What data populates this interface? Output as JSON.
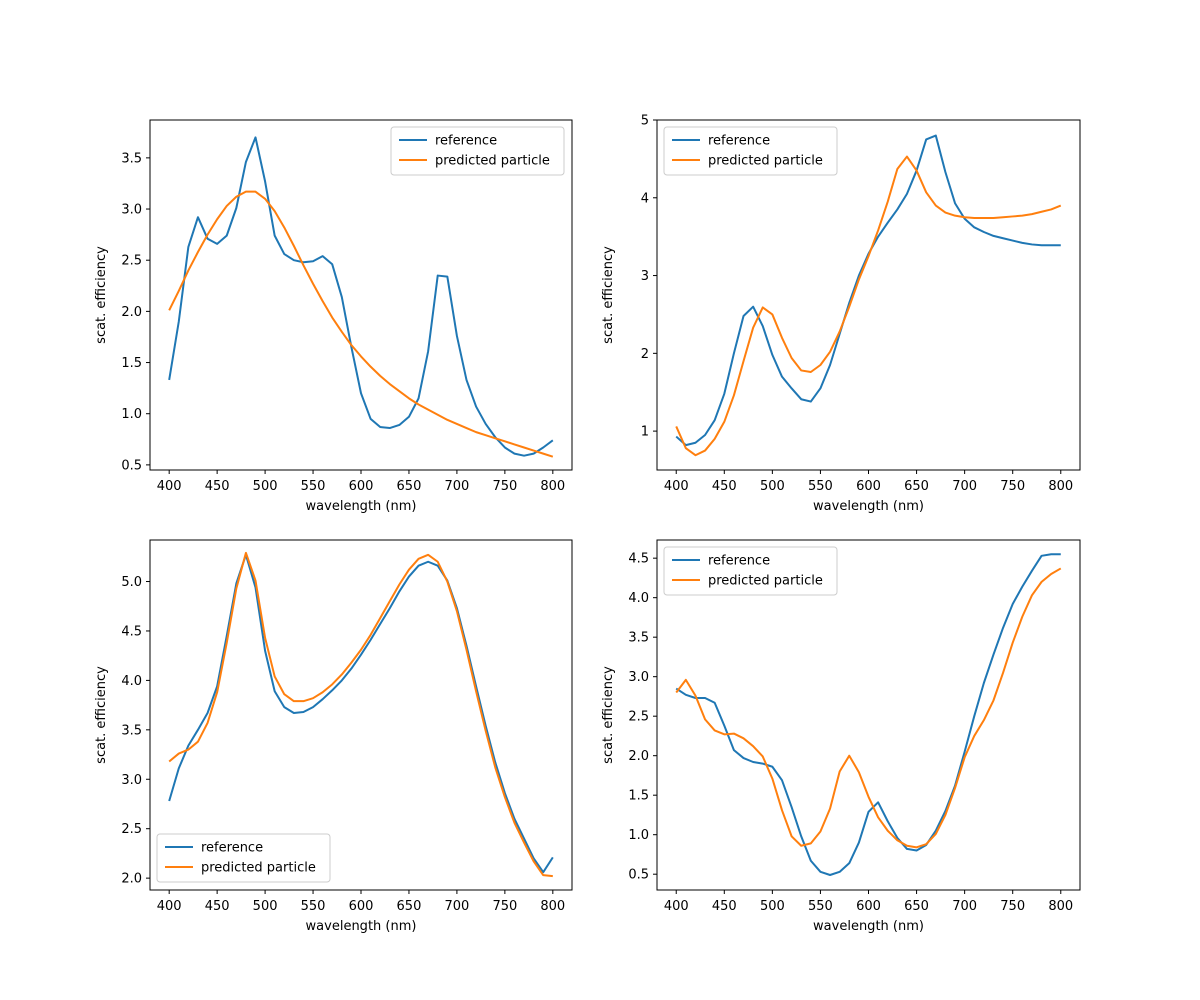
{
  "figure": {
    "title": ""
  },
  "chart_data": [
    {
      "type": "line",
      "title": "",
      "xlabel": "wavelength (nm)",
      "ylabel": "scat. efficiency",
      "xlim": [
        380,
        820
      ],
      "ylim": [
        0.45,
        3.87
      ],
      "xticks": [
        400,
        450,
        500,
        550,
        600,
        650,
        700,
        750,
        800
      ],
      "yticks": [
        0.5,
        1.0,
        1.5,
        2.0,
        2.5,
        3.0,
        3.5
      ],
      "ytick_format": 1,
      "legend_position": "top-right",
      "series": [
        {
          "name": "reference",
          "color": "#1f77b4",
          "x": [
            400,
            410,
            420,
            430,
            440,
            450,
            460,
            470,
            480,
            490,
            500,
            510,
            520,
            530,
            540,
            550,
            560,
            570,
            580,
            590,
            600,
            610,
            620,
            630,
            640,
            650,
            660,
            670,
            680,
            690,
            700,
            710,
            720,
            730,
            740,
            750,
            760,
            770,
            780,
            790,
            800
          ],
          "y": [
            1.33,
            1.9,
            2.63,
            2.92,
            2.71,
            2.66,
            2.74,
            3.01,
            3.46,
            3.7,
            3.27,
            2.74,
            2.56,
            2.5,
            2.48,
            2.49,
            2.54,
            2.46,
            2.14,
            1.65,
            1.2,
            0.95,
            0.87,
            0.86,
            0.89,
            0.97,
            1.15,
            1.61,
            2.35,
            2.34,
            1.76,
            1.33,
            1.07,
            0.9,
            0.77,
            0.67,
            0.61,
            0.59,
            0.61,
            0.67,
            0.74
          ]
        },
        {
          "name": "predicted particle",
          "color": "#ff7f0e",
          "x": [
            400,
            410,
            420,
            430,
            440,
            450,
            460,
            470,
            480,
            490,
            500,
            510,
            520,
            530,
            540,
            550,
            560,
            570,
            580,
            590,
            600,
            610,
            620,
            630,
            640,
            650,
            660,
            670,
            680,
            690,
            700,
            710,
            720,
            730,
            740,
            750,
            760,
            770,
            780,
            790,
            800
          ],
          "y": [
            2.01,
            2.2,
            2.4,
            2.58,
            2.75,
            2.9,
            3.03,
            3.12,
            3.17,
            3.17,
            3.1,
            2.98,
            2.82,
            2.64,
            2.45,
            2.27,
            2.1,
            1.94,
            1.8,
            1.67,
            1.56,
            1.46,
            1.37,
            1.29,
            1.22,
            1.15,
            1.09,
            1.04,
            0.99,
            0.94,
            0.9,
            0.86,
            0.82,
            0.79,
            0.76,
            0.73,
            0.7,
            0.67,
            0.64,
            0.61,
            0.58
          ]
        }
      ]
    },
    {
      "type": "line",
      "title": "",
      "xlabel": "wavelength (nm)",
      "ylabel": "scat. efficiency",
      "xlim": [
        380,
        820
      ],
      "ylim": [
        0.5,
        5.0
      ],
      "xticks": [
        400,
        450,
        500,
        550,
        600,
        650,
        700,
        750,
        800
      ],
      "yticks": [
        1,
        2,
        3,
        4,
        5
      ],
      "ytick_format": 0,
      "legend_position": "top-left",
      "series": [
        {
          "name": "reference",
          "color": "#1f77b4",
          "x": [
            400,
            410,
            420,
            430,
            440,
            450,
            460,
            470,
            480,
            490,
            500,
            510,
            520,
            530,
            540,
            550,
            560,
            570,
            580,
            590,
            600,
            610,
            620,
            630,
            640,
            650,
            660,
            670,
            680,
            690,
            700,
            710,
            720,
            730,
            740,
            750,
            760,
            770,
            780,
            790,
            800
          ],
          "y": [
            0.93,
            0.82,
            0.85,
            0.95,
            1.14,
            1.48,
            2.0,
            2.48,
            2.6,
            2.35,
            1.98,
            1.7,
            1.55,
            1.41,
            1.38,
            1.55,
            1.85,
            2.25,
            2.65,
            3.0,
            3.28,
            3.5,
            3.68,
            3.85,
            4.05,
            4.35,
            4.75,
            4.8,
            4.33,
            3.93,
            3.73,
            3.62,
            3.56,
            3.51,
            3.48,
            3.45,
            3.42,
            3.4,
            3.39,
            3.39,
            3.39
          ]
        },
        {
          "name": "predicted particle",
          "color": "#ff7f0e",
          "x": [
            400,
            410,
            420,
            430,
            440,
            450,
            460,
            470,
            480,
            490,
            500,
            510,
            520,
            530,
            540,
            550,
            560,
            570,
            580,
            590,
            600,
            610,
            620,
            630,
            640,
            650,
            660,
            670,
            680,
            690,
            700,
            710,
            720,
            730,
            740,
            750,
            760,
            770,
            780,
            790,
            800
          ],
          "y": [
            1.06,
            0.78,
            0.69,
            0.75,
            0.9,
            1.12,
            1.46,
            1.9,
            2.33,
            2.59,
            2.5,
            2.2,
            1.94,
            1.78,
            1.76,
            1.85,
            2.02,
            2.28,
            2.6,
            2.95,
            3.25,
            3.58,
            3.95,
            4.37,
            4.53,
            4.35,
            4.07,
            3.9,
            3.81,
            3.77,
            3.75,
            3.74,
            3.74,
            3.74,
            3.75,
            3.76,
            3.77,
            3.79,
            3.82,
            3.85,
            3.9
          ]
        }
      ]
    },
    {
      "type": "line",
      "title": "",
      "xlabel": "wavelength (nm)",
      "ylabel": "scat. efficiency",
      "xlim": [
        380,
        820
      ],
      "ylim": [
        1.88,
        5.42
      ],
      "xticks": [
        400,
        450,
        500,
        550,
        600,
        650,
        700,
        750,
        800
      ],
      "yticks": [
        2.0,
        2.5,
        3.0,
        3.5,
        4.0,
        4.5,
        5.0
      ],
      "ytick_format": 1,
      "legend_position": "bottom-left",
      "series": [
        {
          "name": "reference",
          "color": "#1f77b4",
          "x": [
            400,
            410,
            420,
            430,
            440,
            450,
            460,
            470,
            480,
            490,
            500,
            510,
            520,
            530,
            540,
            550,
            560,
            570,
            580,
            590,
            600,
            610,
            620,
            630,
            640,
            650,
            660,
            670,
            680,
            690,
            700,
            710,
            720,
            730,
            740,
            750,
            760,
            770,
            780,
            790,
            800
          ],
          "y": [
            2.78,
            3.11,
            3.34,
            3.5,
            3.67,
            3.94,
            4.45,
            4.98,
            5.27,
            4.94,
            4.3,
            3.89,
            3.73,
            3.67,
            3.68,
            3.73,
            3.81,
            3.9,
            4.0,
            4.12,
            4.26,
            4.41,
            4.57,
            4.73,
            4.9,
            5.05,
            5.16,
            5.2,
            5.16,
            5.01,
            4.73,
            4.35,
            3.94,
            3.54,
            3.17,
            2.86,
            2.6,
            2.4,
            2.2,
            2.06,
            2.21
          ]
        },
        {
          "name": "predicted particle",
          "color": "#ff7f0e",
          "x": [
            400,
            410,
            420,
            430,
            440,
            450,
            460,
            470,
            480,
            490,
            500,
            510,
            520,
            530,
            540,
            550,
            560,
            570,
            580,
            590,
            600,
            610,
            620,
            630,
            640,
            650,
            660,
            670,
            680,
            690,
            700,
            710,
            720,
            730,
            740,
            750,
            760,
            770,
            780,
            790,
            800
          ],
          "y": [
            3.18,
            3.26,
            3.3,
            3.38,
            3.57,
            3.88,
            4.38,
            4.93,
            5.29,
            5.01,
            4.43,
            4.04,
            3.86,
            3.79,
            3.79,
            3.82,
            3.88,
            3.96,
            4.06,
            4.18,
            4.31,
            4.46,
            4.63,
            4.8,
            4.97,
            5.12,
            5.23,
            5.27,
            5.2,
            5.0,
            4.7,
            4.31,
            3.89,
            3.49,
            3.12,
            2.82,
            2.56,
            2.36,
            2.17,
            2.03,
            2.02
          ]
        }
      ]
    },
    {
      "type": "line",
      "title": "",
      "xlabel": "wavelength (nm)",
      "ylabel": "scat. efficiency",
      "xlim": [
        380,
        820
      ],
      "ylim": [
        0.3,
        4.73
      ],
      "xticks": [
        400,
        450,
        500,
        550,
        600,
        650,
        700,
        750,
        800
      ],
      "yticks": [
        0.5,
        1.0,
        1.5,
        2.0,
        2.5,
        3.0,
        3.5,
        4.0,
        4.5
      ],
      "ytick_format": 1,
      "legend_position": "top-left",
      "series": [
        {
          "name": "reference",
          "color": "#1f77b4",
          "x": [
            400,
            410,
            420,
            430,
            440,
            450,
            460,
            470,
            480,
            490,
            500,
            510,
            520,
            530,
            540,
            550,
            560,
            570,
            580,
            590,
            600,
            610,
            620,
            630,
            640,
            650,
            660,
            670,
            680,
            690,
            700,
            710,
            720,
            730,
            740,
            750,
            760,
            770,
            780,
            790,
            800
          ],
          "y": [
            2.85,
            2.77,
            2.73,
            2.73,
            2.67,
            2.38,
            2.07,
            1.97,
            1.92,
            1.9,
            1.86,
            1.69,
            1.35,
            0.98,
            0.67,
            0.53,
            0.49,
            0.53,
            0.64,
            0.9,
            1.29,
            1.41,
            1.17,
            0.96,
            0.82,
            0.8,
            0.87,
            1.05,
            1.3,
            1.62,
            2.05,
            2.5,
            2.92,
            3.28,
            3.62,
            3.92,
            4.14,
            4.34,
            4.53,
            4.55,
            4.55
          ]
        },
        {
          "name": "predicted particle",
          "color": "#ff7f0e",
          "x": [
            400,
            410,
            420,
            430,
            440,
            450,
            460,
            470,
            480,
            490,
            500,
            510,
            520,
            530,
            540,
            550,
            560,
            570,
            580,
            590,
            600,
            610,
            620,
            630,
            640,
            650,
            660,
            670,
            680,
            690,
            700,
            710,
            720,
            730,
            740,
            750,
            760,
            770,
            780,
            790,
            800
          ],
          "y": [
            2.8,
            2.96,
            2.76,
            2.46,
            2.32,
            2.27,
            2.28,
            2.22,
            2.12,
            1.99,
            1.71,
            1.31,
            0.98,
            0.86,
            0.89,
            1.04,
            1.33,
            1.8,
            2.0,
            1.79,
            1.48,
            1.22,
            1.05,
            0.93,
            0.86,
            0.84,
            0.88,
            1.01,
            1.25,
            1.59,
            1.98,
            2.25,
            2.45,
            2.7,
            3.05,
            3.43,
            3.76,
            4.03,
            4.2,
            4.3,
            4.37
          ]
        }
      ]
    }
  ]
}
